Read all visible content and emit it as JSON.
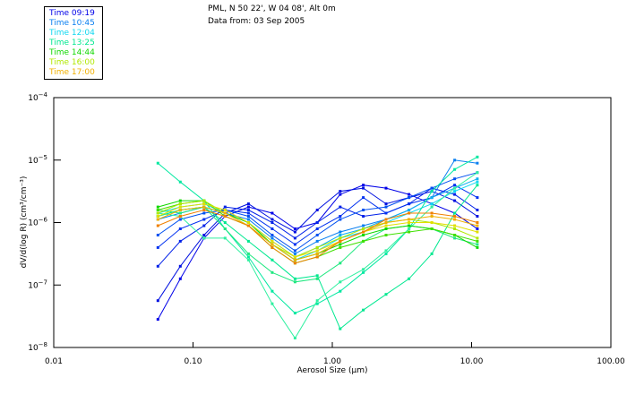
{
  "header": {
    "location": "PML, N 50 22', W 04 08', Alt 0m",
    "date": "Data from: 03 Sep 2005"
  },
  "legend": [
    {
      "label": "Time 09:19",
      "color": "#0000e8"
    },
    {
      "label": "Time 10:45",
      "color": "#0a7ff0"
    },
    {
      "label": "Time 12:04",
      "color": "#10d8f0"
    },
    {
      "label": "Time 13:25",
      "color": "#00e890"
    },
    {
      "label": "Time 14:44",
      "color": "#10d800"
    },
    {
      "label": "Time 16:00",
      "color": "#b0e800"
    },
    {
      "label": "Time 17:00",
      "color": "#f0b000"
    }
  ],
  "chart_data": {
    "type": "line",
    "title": "PML, N 50 22', W 04 08', Alt 0m",
    "subtitle": "Data from: 03 Sep 2005",
    "xlabel": "Aerosol Size (μm)",
    "ylabel": "dV/d(log R) (cm³/cm⁻³)",
    "xscale": "log",
    "yscale": "log",
    "xlim": [
      0.01,
      100
    ],
    "ylim": [
      1e-08,
      0.0001
    ],
    "xticks": [
      "0.01",
      "0.10",
      "1.00",
      "10.00",
      "100.00"
    ],
    "yticks": [
      {
        "base": "10",
        "exp": "-4"
      },
      {
        "base": "10",
        "exp": "-5"
      },
      {
        "base": "10",
        "exp": "-6"
      },
      {
        "base": "10",
        "exp": "-7"
      },
      {
        "base": "10",
        "exp": "-8"
      }
    ],
    "grid": false,
    "legend_position": "top-left",
    "x": [
      0.056,
      0.081,
      0.12,
      0.17,
      0.25,
      0.37,
      0.54,
      0.78,
      1.14,
      1.67,
      2.43,
      3.55,
      5.18,
      7.56,
      11.0
    ],
    "series_log10": [
      {
        "name": "Time 09:19",
        "color": "#0000e8",
        "values": [
          -7.55,
          -6.9,
          -6.25,
          -5.9,
          -5.75,
          -5.85,
          -6.1,
          -6.0,
          -5.55,
          -5.4,
          -5.45,
          -5.55,
          -5.7,
          -5.85,
          -6.1
        ]
      },
      {
        "name": "Time 09:19",
        "color": "#0010e0",
        "values": [
          -7.25,
          -6.7,
          -6.2,
          -5.85,
          -5.7,
          -5.95,
          -6.15,
          -5.8,
          -5.5,
          -5.45,
          -5.7,
          -5.6,
          -5.5,
          -5.65,
          -5.9
        ]
      },
      {
        "name": "Time 09:19",
        "color": "#0020e8",
        "values": [
          -6.7,
          -6.3,
          -6.05,
          -5.75,
          -5.8,
          -6.0,
          -6.25,
          -6.0,
          -5.75,
          -5.9,
          -5.85,
          -5.7,
          -5.45,
          -5.55,
          -5.8
        ]
      },
      {
        "name": "Time 09:19",
        "color": "#0030f0",
        "values": [
          -6.4,
          -6.1,
          -5.95,
          -5.8,
          -5.85,
          -6.1,
          -6.35,
          -6.1,
          -5.9,
          -5.6,
          -5.85,
          -5.7,
          -5.6,
          -5.4,
          -5.6
        ]
      },
      {
        "name": "Time 10:45",
        "color": "#0050f0",
        "values": [
          -6.2,
          -5.95,
          -5.85,
          -5.8,
          -5.9,
          -6.2,
          -6.45,
          -6.2,
          -5.95,
          -5.8,
          -5.75,
          -5.6,
          -5.45,
          -5.3,
          -5.2
        ]
      },
      {
        "name": "Time 10:45",
        "color": "#0a7ff0",
        "values": [
          -5.95,
          -5.85,
          -5.75,
          -5.85,
          -5.95,
          -6.25,
          -6.5,
          -6.3,
          -6.15,
          -6.05,
          -5.95,
          -5.8,
          -5.6,
          -5.0,
          -5.05
        ]
      },
      {
        "name": "Time 12:04",
        "color": "#10b0f0",
        "values": [
          -5.9,
          -5.8,
          -5.75,
          -5.85,
          -6.0,
          -6.3,
          -6.55,
          -6.4,
          -6.2,
          -6.1,
          -5.95,
          -5.8,
          -5.6,
          -5.45,
          -5.3
        ]
      },
      {
        "name": "Time 12:04",
        "color": "#10d8f0",
        "values": [
          -5.85,
          -5.75,
          -5.7,
          -5.85,
          -6.0,
          -6.35,
          -6.6,
          -6.45,
          -6.25,
          -6.15,
          -6.0,
          -5.85,
          -5.7,
          -5.5,
          -5.35
        ]
      },
      {
        "name": "Time 13:25",
        "color": "#00e8a0",
        "values": [
          -5.05,
          -5.35,
          -5.65,
          -6.1,
          -6.55,
          -7.1,
          -7.45,
          -7.3,
          -7.1,
          -6.8,
          -6.5,
          -6.1,
          -5.5,
          -5.15,
          -4.95
        ]
      },
      {
        "name": "Time 13:25",
        "color": "#00e890",
        "values": [
          -5.9,
          -5.8,
          -5.75,
          -6.0,
          -6.3,
          -6.6,
          -6.9,
          -6.85,
          -7.7,
          -7.4,
          -7.15,
          -6.9,
          -6.5,
          -5.85,
          -5.4
        ]
      },
      {
        "name": "Time 13:25",
        "color": "#20e880",
        "values": [
          -5.8,
          -5.85,
          -5.75,
          -6.1,
          -6.5,
          -6.8,
          -6.95,
          -6.9,
          -6.65,
          -6.3,
          -6.1,
          -6.05,
          -6.1,
          -6.25,
          -6.35
        ]
      },
      {
        "name": "Time 13:25",
        "color": "#30f0a0",
        "values": [
          -5.85,
          -5.9,
          -6.25,
          -6.25,
          -6.6,
          -7.3,
          -7.85,
          -7.25,
          -6.95,
          -6.75,
          -6.45,
          -6.1,
          -5.75,
          -5.45,
          -5.2
        ]
      },
      {
        "name": "Time 14:44",
        "color": "#10d800",
        "values": [
          -5.75,
          -5.65,
          -5.65,
          -5.85,
          -6.0,
          -6.35,
          -6.6,
          -6.5,
          -6.35,
          -6.2,
          -6.1,
          -6.05,
          -6.1,
          -6.2,
          -6.4
        ]
      },
      {
        "name": "Time 14:44",
        "color": "#40e000",
        "values": [
          -5.8,
          -5.7,
          -5.65,
          -5.9,
          -6.05,
          -6.4,
          -6.65,
          -6.55,
          -6.4,
          -6.3,
          -6.2,
          -6.15,
          -6.1,
          -6.2,
          -6.3
        ]
      },
      {
        "name": "Time 16:00",
        "color": "#b0e800",
        "values": [
          -5.85,
          -5.7,
          -5.65,
          -5.85,
          -6.05,
          -6.35,
          -6.55,
          -6.4,
          -6.25,
          -6.1,
          -6.0,
          -5.95,
          -6.0,
          -6.1,
          -6.25
        ]
      },
      {
        "name": "Time 16:00",
        "color": "#e0e000",
        "values": [
          -5.9,
          -5.75,
          -5.7,
          -5.8,
          -6.0,
          -6.3,
          -6.55,
          -6.45,
          -6.3,
          -6.15,
          -6.05,
          -6.0,
          -6.0,
          -6.05,
          -6.15
        ]
      },
      {
        "name": "Time 17:00",
        "color": "#f0b000",
        "values": [
          -5.95,
          -5.8,
          -5.75,
          -5.85,
          -6.05,
          -6.35,
          -6.6,
          -6.5,
          -6.3,
          -6.15,
          -6.0,
          -5.95,
          -5.9,
          -5.95,
          -6.05
        ]
      },
      {
        "name": "Time 17:00",
        "color": "#f08000",
        "values": [
          -6.05,
          -5.9,
          -5.8,
          -5.9,
          -6.05,
          -6.4,
          -6.65,
          -6.55,
          -6.3,
          -6.15,
          -5.95,
          -5.85,
          -5.85,
          -5.9,
          -6.0
        ]
      }
    ]
  }
}
